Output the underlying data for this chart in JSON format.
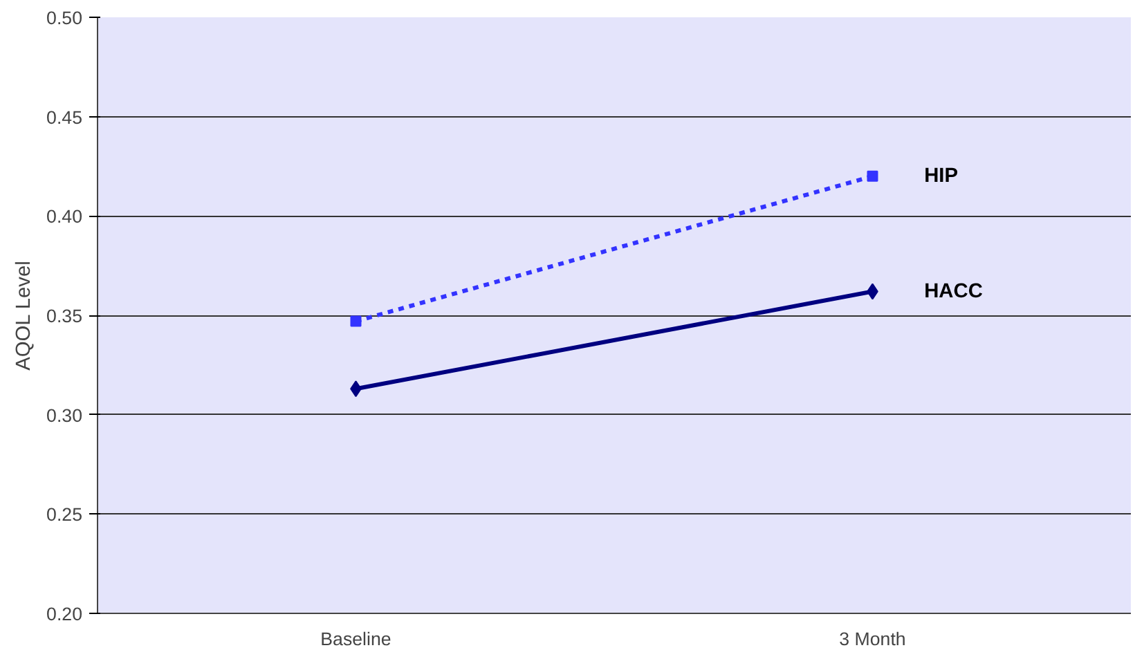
{
  "chart_data": {
    "type": "line",
    "ylabel": "AQOL Level",
    "categories": [
      "Baseline",
      "3 Month"
    ],
    "series": [
      {
        "name": "HIP",
        "color": "#3333ff",
        "values": [
          0.347,
          0.42
        ],
        "marker": "square",
        "line_style": "dashed"
      },
      {
        "name": "HACC",
        "color": "#000080",
        "values": [
          0.313,
          0.362
        ],
        "marker": "diamond",
        "line_style": "solid"
      }
    ],
    "ylim": [
      0.2,
      0.5
    ],
    "yticks": [
      {
        "value": 0.2,
        "label": "0.20"
      },
      {
        "value": 0.25,
        "label": "0.25"
      },
      {
        "value": 0.3,
        "label": "0.30"
      },
      {
        "value": 0.35,
        "label": "0.35"
      },
      {
        "value": 0.4,
        "label": "0.40"
      },
      {
        "value": 0.45,
        "label": "0.45"
      },
      {
        "value": 0.5,
        "label": "0.50"
      }
    ],
    "grid": "y",
    "legend": false
  }
}
